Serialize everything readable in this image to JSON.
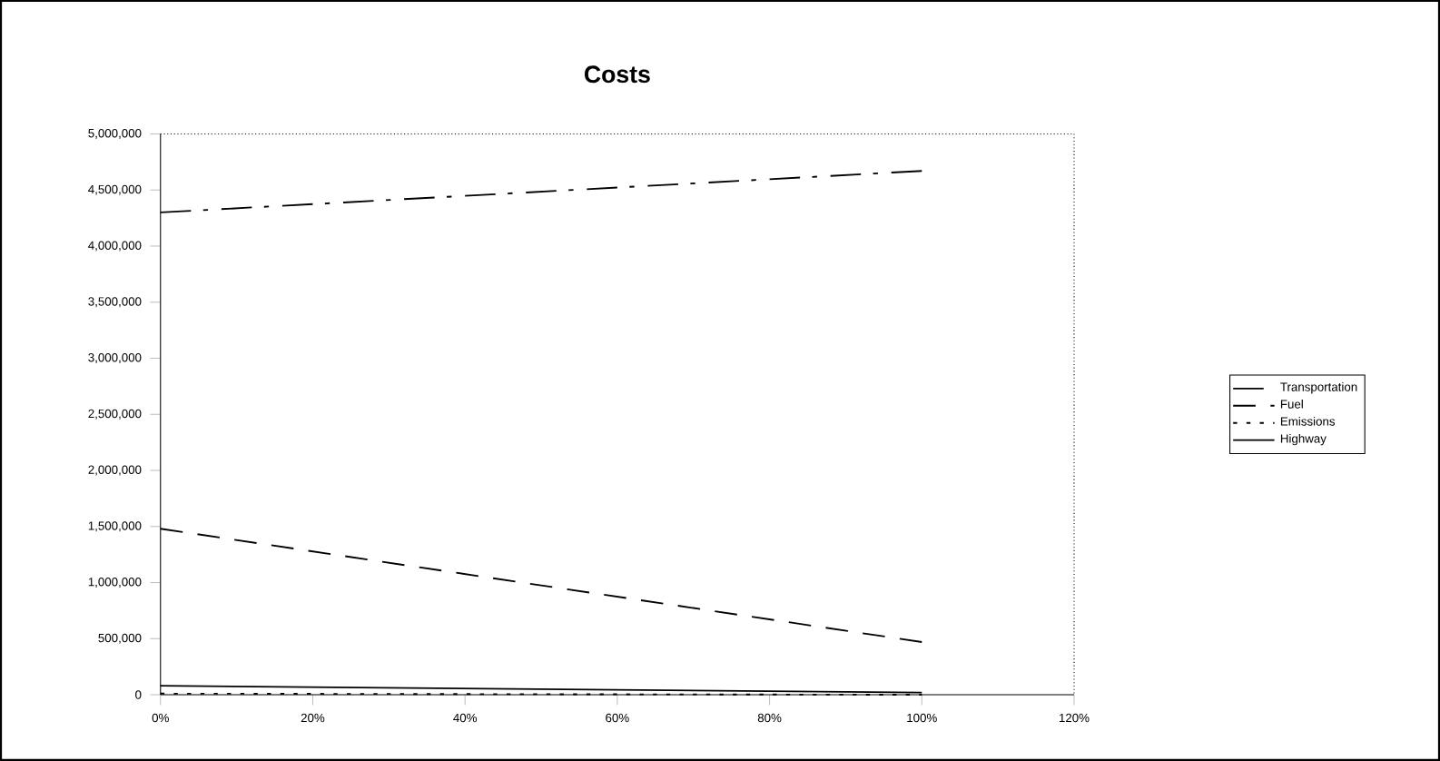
{
  "chart_data": {
    "type": "line",
    "title": "Costs",
    "x": [
      0,
      100
    ],
    "series": [
      {
        "name": "Transportation",
        "color": "#000000",
        "line_style": "dashed",
        "values": [
          4300000,
          4670000
        ]
      },
      {
        "name": "Fuel",
        "color": "#000000",
        "line_style": "dashed",
        "values": [
          1480000,
          470000
        ]
      },
      {
        "name": "Emissions",
        "color": "#000000",
        "line_style": "dotted",
        "values": [
          10000,
          0
        ]
      },
      {
        "name": "Highway",
        "color": "#000000",
        "line_style": "solid",
        "values": [
          80000,
          20000
        ]
      }
    ],
    "xlim": [
      0,
      120
    ],
    "xticks": [
      {
        "value": 0,
        "label": "0%"
      },
      {
        "value": 20,
        "label": "20%"
      },
      {
        "value": 40,
        "label": "40%"
      },
      {
        "value": 60,
        "label": "60%"
      },
      {
        "value": 80,
        "label": "80%"
      },
      {
        "value": 100,
        "label": "100%"
      },
      {
        "value": 120,
        "label": "120%"
      }
    ],
    "ylim": [
      0,
      5000000
    ],
    "yticks": [
      {
        "value": 0,
        "label": "0"
      },
      {
        "value": 500000,
        "label": "500,000"
      },
      {
        "value": 1000000,
        "label": "1,000,000"
      },
      {
        "value": 1500000,
        "label": "1,500,000"
      },
      {
        "value": 2000000,
        "label": "2,000,000"
      },
      {
        "value": 2500000,
        "label": "2,500,000"
      },
      {
        "value": 3000000,
        "label": "3,000,000"
      },
      {
        "value": 3500000,
        "label": "3,500,000"
      },
      {
        "value": 4000000,
        "label": "4,000,000"
      },
      {
        "value": 4500000,
        "label": "4,500,000"
      },
      {
        "value": 5000000,
        "label": "5,000,000"
      }
    ],
    "grid": false,
    "legend": "right",
    "marker": "none"
  }
}
